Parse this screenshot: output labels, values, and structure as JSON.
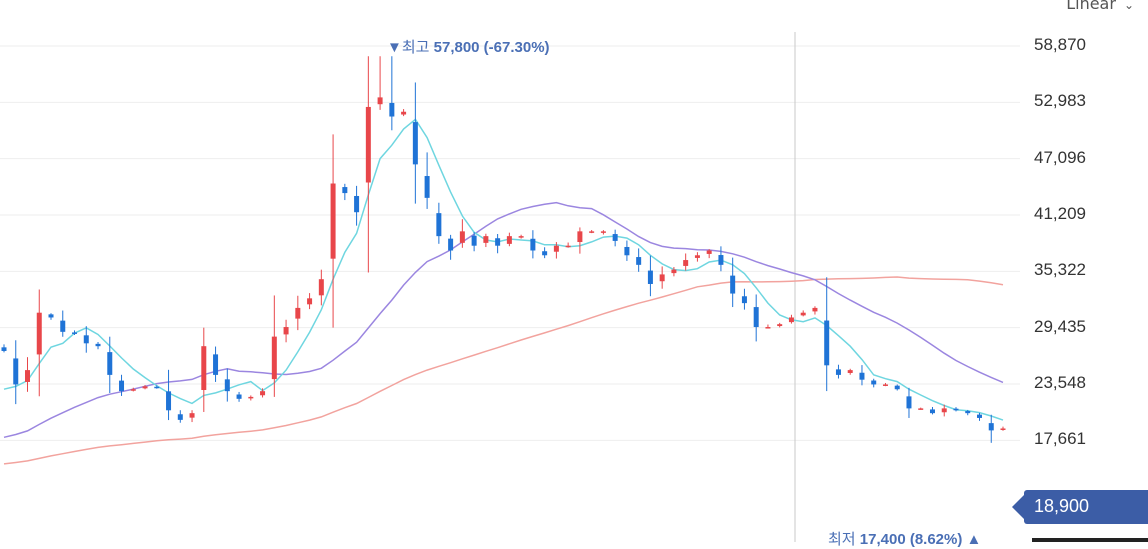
{
  "scale_button": {
    "label": "Linear",
    "icon": "chevron-down-icon"
  },
  "annotations": {
    "high_marker": "▼",
    "high_prefix": "최고",
    "high_value": "57,800 (-67.30%)",
    "low_prefix": "최저",
    "low_value": "17,400 (8.62%)",
    "low_marker": "▲"
  },
  "current_price": "18,900",
  "colors": {
    "up": "#e8464a",
    "down": "#1f73d6",
    "ma5": "#6fd6e0",
    "ma20": "#9b86e0",
    "ma60": "#f2a39e",
    "price_tag": "#3c5da6",
    "annotation": "#4a6fb5"
  },
  "chart_data": {
    "type": "candlestick",
    "y_ticks": [
      "58,870",
      "52,983",
      "47,096",
      "41,209",
      "35,322",
      "29,435",
      "23,548",
      "17,661"
    ],
    "y_tick_values": [
      58870,
      52983,
      47096,
      41209,
      35322,
      29435,
      23548,
      17661
    ],
    "ylim": [
      16500,
      61600
    ],
    "grid": true,
    "high": 57800,
    "low": 17400,
    "last": 18900,
    "series": [
      {
        "name": "",
        "values": [
          27000,
          23500,
          25000,
          31000,
          30500,
          29000,
          28800,
          27800,
          27500,
          24500,
          22800,
          23000,
          23300,
          23200,
          20800,
          19800,
          20500,
          27500,
          24500,
          22800,
          22000,
          22200,
          22800,
          28500,
          29500,
          31500,
          32500,
          34500,
          44500,
          43500,
          41500,
          52500,
          53500,
          51500,
          52000,
          46500,
          43000,
          39000,
          37500,
          39500,
          38000,
          39000,
          38000,
          39000,
          39000,
          37500,
          37000,
          38000,
          38000,
          39500,
          39500,
          39500,
          38500,
          37000,
          36000,
          34000,
          35000,
          35500,
          36500,
          37000,
          37500,
          36000,
          33000,
          32000,
          29500,
          29500,
          29800,
          30500,
          31000,
          31500,
          25500,
          24500,
          25000,
          24000,
          23500,
          23500,
          23000,
          21000,
          21000,
          20500,
          21000,
          20800,
          20500,
          20000,
          18700,
          18900
        ]
      }
    ]
  }
}
